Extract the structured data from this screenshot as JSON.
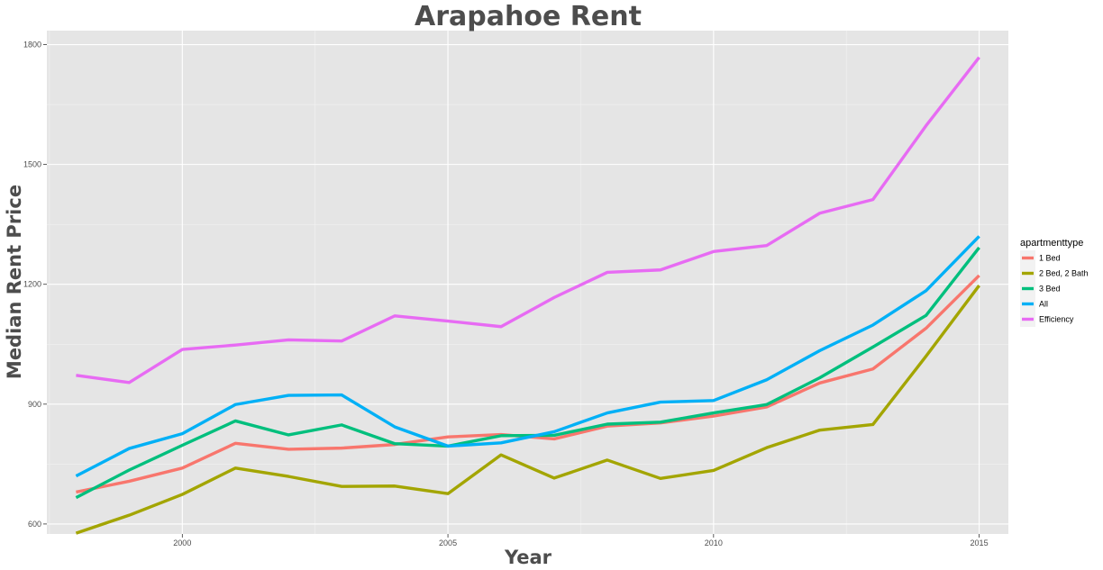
{
  "chart_data": {
    "type": "line",
    "title": "Arapahoe Rent",
    "xlabel": "Year",
    "ylabel": "Median Rent Price",
    "xlim": [
      1997.45,
      2015.55
    ],
    "ylim": [
      575,
      1835
    ],
    "x_ticks": [
      2000,
      2005,
      2010,
      2015
    ],
    "y_ticks": [
      600,
      900,
      1200,
      1500,
      1800
    ],
    "grid": true,
    "legend_title": "apartmenttype",
    "legend_position": "right",
    "x": [
      1998,
      1999,
      2000,
      2001,
      2002,
      2003,
      2004,
      2005,
      2006,
      2007,
      2008,
      2009,
      2010,
      2011,
      2012,
      2013,
      2014,
      2015
    ],
    "series": [
      {
        "name": "1 Bed",
        "color": "#F8766D",
        "values": [
          680,
          707,
          740,
          802,
          787,
          790,
          799,
          818,
          824,
          813,
          845,
          853,
          870,
          893,
          953,
          988,
          1090,
          1222
        ]
      },
      {
        "name": "2 Bed, 2 Bath",
        "color": "#A3A500",
        "values": [
          577,
          622,
          674,
          740,
          719,
          694,
          695,
          676,
          773,
          715,
          760,
          714,
          734,
          791,
          835,
          849,
          1020,
          1197
        ]
      },
      {
        "name": "3 Bed",
        "color": "#00BF7D",
        "values": [
          666,
          735,
          797,
          858,
          823,
          848,
          801,
          795,
          821,
          822,
          850,
          855,
          878,
          899,
          966,
          1043,
          1122,
          1292
        ]
      },
      {
        "name": "All",
        "color": "#00B0F6",
        "values": [
          720,
          789,
          826,
          899,
          922,
          923,
          843,
          795,
          803,
          831,
          878,
          905,
          909,
          961,
          1034,
          1098,
          1184,
          1320
        ]
      },
      {
        "name": "Efficiency",
        "color": "#E76BF3",
        "values": [
          972,
          954,
          1037,
          1048,
          1061,
          1058,
          1121,
          1108,
          1094,
          1167,
          1230,
          1236,
          1282,
          1297,
          1378,
          1412,
          1597,
          1768
        ]
      }
    ]
  }
}
